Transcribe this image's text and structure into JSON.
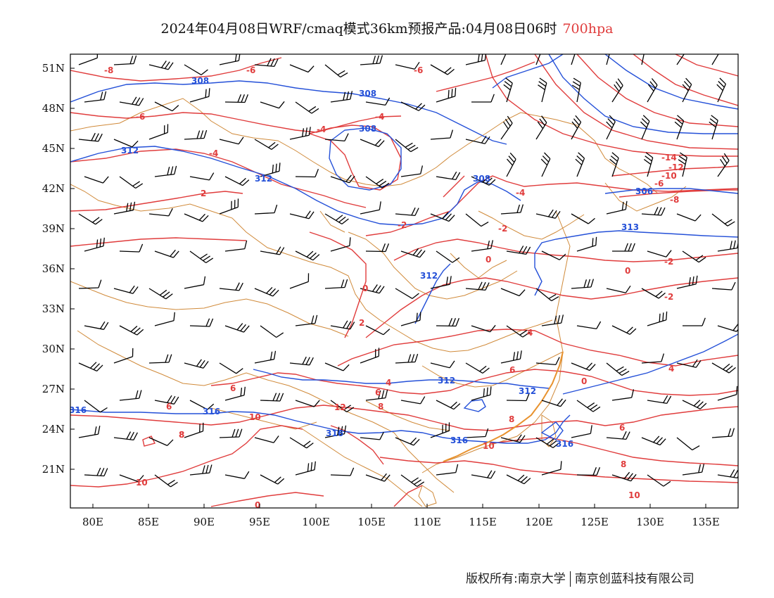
{
  "title": {
    "text": "2024年04月08日WRF/cmaq模式36km预报产品:04月08日06时",
    "level": "700hpa"
  },
  "axes": {
    "lat_labels": [
      "51N",
      "48N",
      "45N",
      "42N",
      "39N",
      "36N",
      "33N",
      "30N",
      "27N",
      "24N",
      "21N"
    ],
    "lon_labels": [
      "80E",
      "85E",
      "90E",
      "95E",
      "100E",
      "105E",
      "110E",
      "115E",
      "120E",
      "125E",
      "130E",
      "135E"
    ]
  },
  "contour_labels": {
    "height": [
      "308",
      "308",
      "308",
      "312",
      "312",
      "308",
      "312",
      "312",
      "312",
      "306",
      "313",
      "316",
      "316",
      "316",
      "316",
      "316"
    ],
    "temperature": [
      "-8",
      "-6",
      "-6",
      "-6",
      "-4",
      "-4",
      "-4",
      "-2",
      "-4",
      "-2",
      "-2",
      "2",
      "0",
      "0",
      "0",
      "2",
      "-2",
      "-6",
      "-8",
      "-10",
      "-12",
      "-14",
      "4",
      "4",
      "6",
      "8",
      "8",
      "12",
      "6",
      "6",
      "8",
      "10",
      "8",
      "10",
      "10",
      "8",
      "10",
      "6",
      "4",
      "6",
      "0",
      "0"
    ]
  },
  "colors": {
    "height_contour": "#2450d8",
    "temperature_contour": "#e03c3c",
    "boundary": "#d08a3a",
    "wind_barb": "#000000",
    "level_text": "#e03c3c"
  },
  "footer": {
    "left": "版权所有:南京大学",
    "right": "南京创蓝科技有限公司"
  }
}
